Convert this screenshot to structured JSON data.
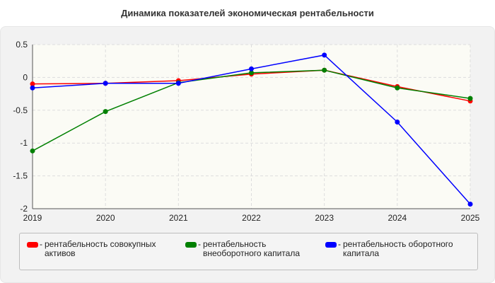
{
  "chart_data": {
    "type": "line",
    "title": "Динамика показателей экономическая рентабельности",
    "xlabel": "",
    "ylabel": "",
    "x": [
      2019,
      2020,
      2021,
      2022,
      2023,
      2024,
      2025
    ],
    "x_tick_labels": [
      "2019",
      "2020",
      "2021",
      "2022",
      "2023",
      "2024",
      "2025"
    ],
    "y_tick_labels": [
      "0.5",
      "0",
      "-0.5",
      "-1",
      "-1.5",
      "-2"
    ],
    "ylim": [
      -2,
      0.5
    ],
    "y_ticks": [
      0.5,
      0,
      -0.5,
      -1,
      -1.5,
      -2
    ],
    "grid": true,
    "legend_position": "bottom",
    "series": [
      {
        "name": "рентабельность совокупных активов",
        "color": "#ff0000",
        "values": [
          -0.1,
          -0.09,
          -0.05,
          0.05,
          0.11,
          -0.14,
          -0.36
        ]
      },
      {
        "name": "рентабельность внеоборотного капитала",
        "color": "#008000",
        "values": [
          -1.12,
          -0.52,
          -0.08,
          0.07,
          0.11,
          -0.16,
          -0.32
        ]
      },
      {
        "name": "рентабельность оборотного капитала",
        "color": "#0000ff",
        "values": [
          -0.16,
          -0.09,
          -0.09,
          0.13,
          0.34,
          -0.68,
          -1.93
        ]
      }
    ]
  },
  "legend": {
    "prefix": "-",
    "items": [
      {
        "line1": "рентабельность совокупных",
        "line2": "активов"
      },
      {
        "line1": "рентабельность",
        "line2": "внеоборотного капитала"
      },
      {
        "line1": "рентабельность оборотного",
        "line2": "капитала"
      }
    ]
  }
}
